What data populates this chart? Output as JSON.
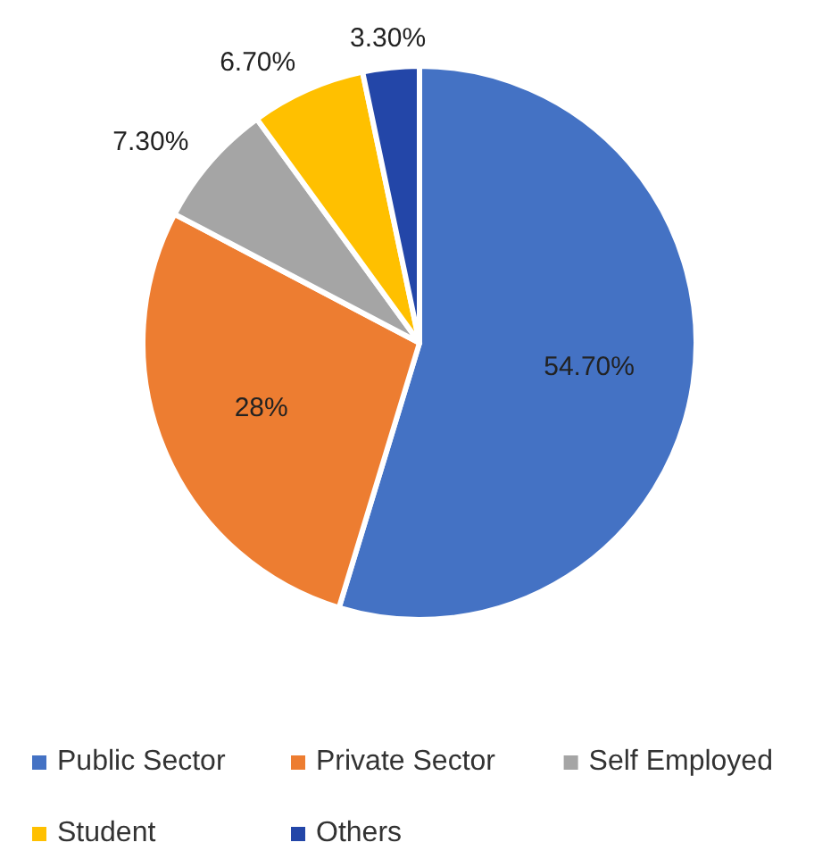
{
  "chart_data": {
    "type": "pie",
    "categories": [
      "Public Sector",
      "Private Sector",
      "Self Employed",
      "Student",
      "Others"
    ],
    "values": [
      54.7,
      28,
      7.3,
      6.7,
      3.3
    ],
    "colors": [
      "#4472c4",
      "#ed7d31",
      "#a5a5a5",
      "#ffc000",
      "#2346a8"
    ],
    "value_labels": [
      "54.70%",
      "28%",
      "7.30%",
      "6.70%",
      "3.30%"
    ],
    "legend": "bottom"
  }
}
